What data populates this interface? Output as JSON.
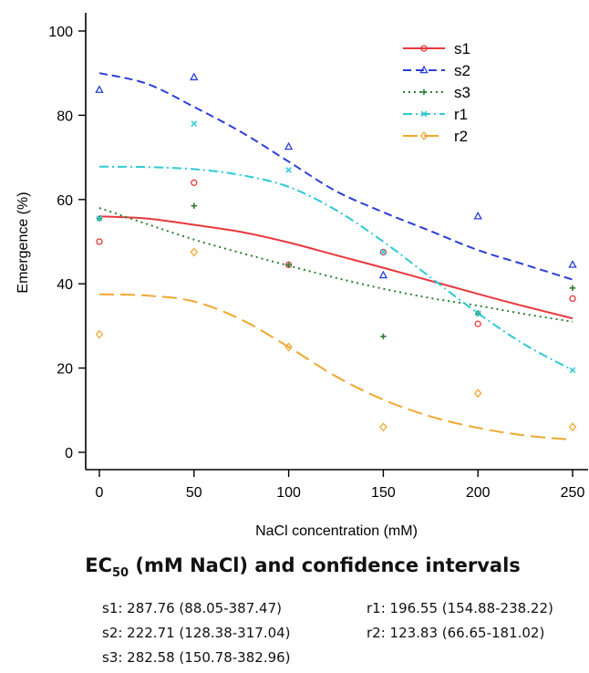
{
  "chart_data": {
    "type": "scatter",
    "xlabel": "NaCl concentration (mM)",
    "ylabel": "Emergence (%)",
    "xlim": [
      0,
      250
    ],
    "ylim": [
      0,
      100
    ],
    "x_ticks": [
      0,
      50,
      100,
      150,
      200,
      250
    ],
    "y_ticks": [
      0,
      20,
      40,
      60,
      80,
      100
    ],
    "grid": false,
    "legend_position": "top-right",
    "x": [
      0,
      50,
      100,
      150,
      200,
      250
    ],
    "series": [
      {
        "name": "s1",
        "color": "#e8383d",
        "marker": "circle",
        "line_style": "solid",
        "values": [
          50,
          64,
          44.5,
          47.5,
          30.5,
          36.5
        ],
        "fitted_curve": {
          "x": [
            0,
            25,
            50,
            75,
            100,
            125,
            150,
            175,
            200,
            225,
            250
          ],
          "y": [
            56,
            55.5,
            54,
            52.3,
            49.8,
            46.8,
            43.8,
            40.7,
            37.6,
            34.6,
            31.8
          ]
        }
      },
      {
        "name": "s2",
        "color": "#2b3fd8",
        "marker": "triangle",
        "line_style": "dashed",
        "values": [
          86,
          89,
          72.5,
          42,
          56,
          44.5
        ],
        "fitted_curve": {
          "x": [
            0,
            25,
            50,
            75,
            100,
            125,
            150,
            175,
            200,
            225,
            250
          ],
          "y": [
            90,
            87.5,
            82,
            76,
            69,
            62,
            57,
            52.5,
            48,
            44.5,
            41
          ]
        }
      },
      {
        "name": "s3",
        "color": "#2e7d32",
        "marker": "plus",
        "line_style": "dotted",
        "values": [
          55.5,
          58.5,
          44.5,
          27.5,
          33,
          39
        ],
        "fitted_curve": {
          "x": [
            0,
            25,
            50,
            75,
            100,
            125,
            150,
            175,
            200,
            225,
            250
          ],
          "y": [
            58,
            54.2,
            50.5,
            47.3,
            44.3,
            41.4,
            38.8,
            36.6,
            34.8,
            32.8,
            31
          ]
        }
      },
      {
        "name": "r1",
        "color": "#2ec9d6",
        "marker": "x",
        "line_style": "dashdot",
        "values": [
          55.5,
          78,
          67,
          47.5,
          33,
          19.5
        ],
        "fitted_curve": {
          "x": [
            0,
            25,
            50,
            75,
            100,
            125,
            150,
            175,
            200,
            225,
            250
          ],
          "y": [
            67.8,
            67.7,
            67.2,
            65.8,
            63,
            57.5,
            50,
            41.5,
            33,
            25.5,
            19.5
          ]
        }
      },
      {
        "name": "r2",
        "color": "#f0a830",
        "marker": "diamond",
        "line_style": "longdash",
        "values": [
          28,
          47.5,
          25,
          6,
          14,
          6
        ],
        "fitted_curve": {
          "x": [
            0,
            25,
            50,
            75,
            100,
            125,
            150,
            175,
            200,
            225,
            250
          ],
          "y": [
            37.5,
            37.2,
            35.8,
            31.5,
            25,
            18,
            12.5,
            8.5,
            5.8,
            4,
            3
          ]
        }
      }
    ]
  },
  "ec50": {
    "title_main": "EC",
    "title_sub": "50",
    "title_rest": " (mM NaCl) and confidence intervals",
    "entries": [
      "s1: 287.76 (88.05-387.47)",
      "s2: 222.71 (128.38-317.04)",
      "s3: 282.58 (150.78-382.96)",
      "r1: 196.55 (154.88-238.22)",
      "r2: 123.83 (66.65-181.02)"
    ]
  }
}
